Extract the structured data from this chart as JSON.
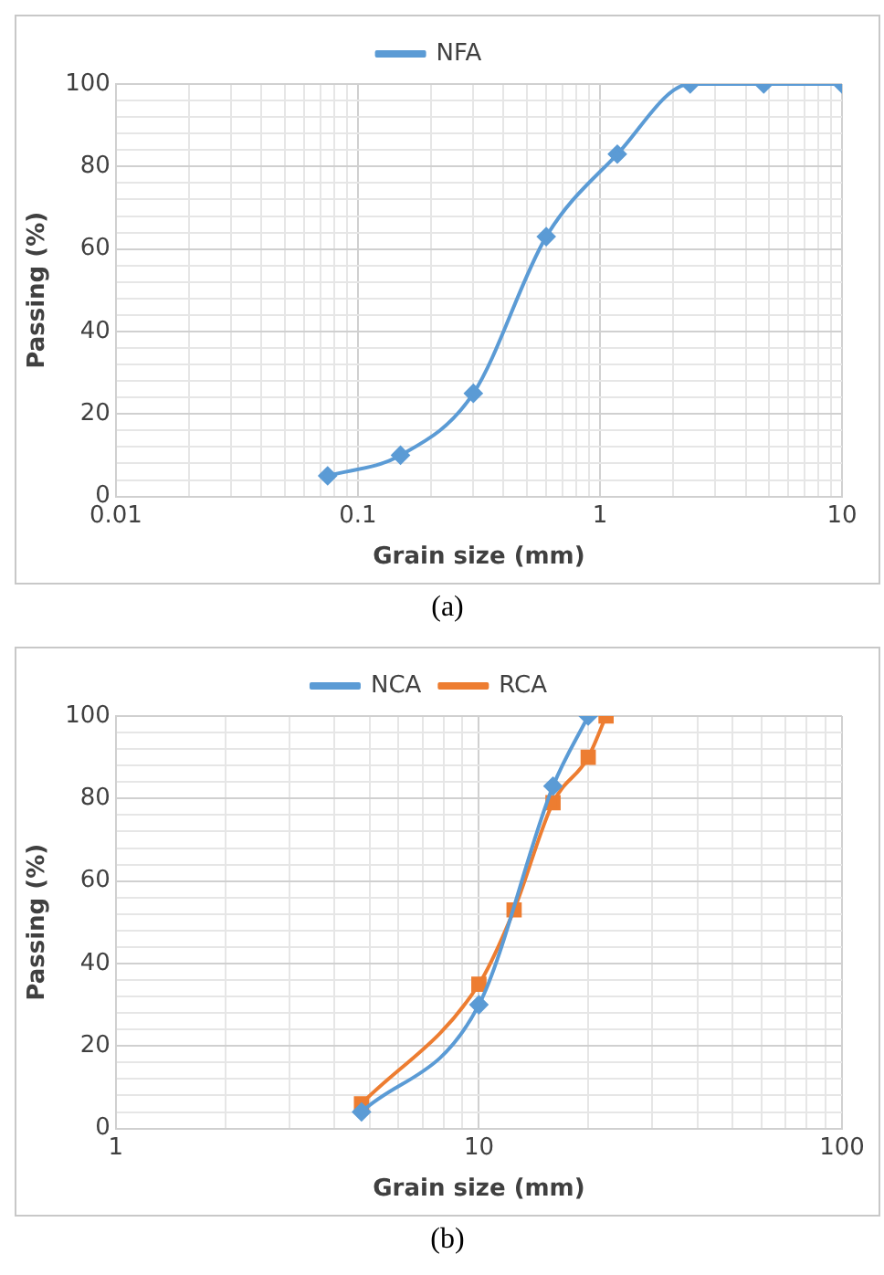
{
  "chart_data": [
    {
      "type": "line",
      "xlabel": "Grain size (mm)",
      "ylabel": "Passing (%)",
      "annotations": [
        "(a)"
      ],
      "log": "x",
      "grid": true,
      "legend": "top",
      "xlim": [
        0.01,
        10
      ],
      "ylim": [
        0,
        100
      ],
      "xticks": [
        0.01,
        {
          "value": 0.02,
          "label": null
        },
        {
          "value": 0.03,
          "label": null
        },
        {
          "value": 0.04,
          "label": null
        },
        {
          "value": 0.05,
          "label": null
        },
        {
          "value": 0.06,
          "label": null
        },
        {
          "value": 0.07,
          "label": null
        },
        {
          "value": 0.08,
          "label": null
        },
        {
          "value": 0.09,
          "label": null
        },
        0.1,
        {
          "value": 0.2,
          "label": null
        },
        {
          "value": 0.3,
          "label": null
        },
        {
          "value": 0.4,
          "label": null
        },
        {
          "value": 0.5,
          "label": null
        },
        {
          "value": 0.6,
          "label": null
        },
        {
          "value": 0.7,
          "label": null
        },
        {
          "value": 0.8,
          "label": null
        },
        {
          "value": 0.9,
          "label": null
        },
        1,
        {
          "value": 2,
          "label": null
        },
        {
          "value": 3,
          "label": null
        },
        {
          "value": 4,
          "label": null
        },
        {
          "value": 5,
          "label": null
        },
        {
          "value": 6,
          "label": null
        },
        {
          "value": 7,
          "label": null
        },
        {
          "value": 8,
          "label": null
        },
        {
          "value": 9,
          "label": null
        },
        10
      ],
      "yticks": [
        0,
        {
          "value": 4,
          "label": null
        },
        {
          "value": 8,
          "label": null
        },
        {
          "value": 12,
          "label": null
        },
        {
          "value": 16,
          "label": null
        },
        20,
        {
          "value": 24,
          "label": null
        },
        {
          "value": 28,
          "label": null
        },
        {
          "value": 32,
          "label": null
        },
        {
          "value": 36,
          "label": null
        },
        40,
        {
          "value": 44,
          "label": null
        },
        {
          "value": 48,
          "label": null
        },
        {
          "value": 52,
          "label": null
        },
        {
          "value": 56,
          "label": null
        },
        60,
        {
          "value": 64,
          "label": null
        },
        {
          "value": 68,
          "label": null
        },
        {
          "value": 72,
          "label": null
        },
        {
          "value": 76,
          "label": null
        },
        80,
        {
          "value": 84,
          "label": null
        },
        {
          "value": 88,
          "label": null
        },
        {
          "value": 92,
          "label": null
        },
        {
          "value": 96,
          "label": null
        },
        100
      ],
      "series": [
        {
          "name": "NFA",
          "color": "#5b9bd5",
          "marker": "diamond",
          "x": [
            0.075,
            0.15,
            0.3,
            0.6,
            1.18,
            2.36,
            4.75,
            10
          ],
          "values": [
            5,
            10,
            25,
            63,
            83,
            100,
            100,
            100
          ]
        }
      ]
    },
    {
      "type": "line",
      "xlabel": "Grain size (mm)",
      "ylabel": "Passing (%)",
      "annotations": [
        "(b)"
      ],
      "log": "x",
      "grid": true,
      "legend": "top",
      "xlim": [
        1,
        100
      ],
      "ylim": [
        0,
        100
      ],
      "xticks": [
        1,
        {
          "value": 2,
          "label": null
        },
        {
          "value": 3,
          "label": null
        },
        {
          "value": 4,
          "label": null
        },
        {
          "value": 5,
          "label": null
        },
        {
          "value": 6,
          "label": null
        },
        {
          "value": 7,
          "label": null
        },
        {
          "value": 8,
          "label": null
        },
        {
          "value": 9,
          "label": null
        },
        10,
        {
          "value": 20,
          "label": null
        },
        {
          "value": 30,
          "label": null
        },
        {
          "value": 40,
          "label": null
        },
        {
          "value": 50,
          "label": null
        },
        {
          "value": 60,
          "label": null
        },
        {
          "value": 70,
          "label": null
        },
        {
          "value": 80,
          "label": null
        },
        {
          "value": 90,
          "label": null
        },
        100
      ],
      "yticks": [
        0,
        {
          "value": 4,
          "label": null
        },
        {
          "value": 8,
          "label": null
        },
        {
          "value": 12,
          "label": null
        },
        {
          "value": 16,
          "label": null
        },
        20,
        {
          "value": 24,
          "label": null
        },
        {
          "value": 28,
          "label": null
        },
        {
          "value": 32,
          "label": null
        },
        {
          "value": 36,
          "label": null
        },
        40,
        {
          "value": 44,
          "label": null
        },
        {
          "value": 48,
          "label": null
        },
        {
          "value": 52,
          "label": null
        },
        {
          "value": 56,
          "label": null
        },
        60,
        {
          "value": 64,
          "label": null
        },
        {
          "value": 68,
          "label": null
        },
        {
          "value": 72,
          "label": null
        },
        {
          "value": 76,
          "label": null
        },
        80,
        {
          "value": 84,
          "label": null
        },
        {
          "value": 88,
          "label": null
        },
        {
          "value": 92,
          "label": null
        },
        {
          "value": 96,
          "label": null
        },
        100
      ],
      "series": [
        {
          "name": "NCA",
          "color": "#5b9bd5",
          "marker": "diamond",
          "x": [
            4.75,
            10,
            16,
            20
          ],
          "values": [
            4,
            30,
            83,
            100
          ]
        },
        {
          "name": "RCA",
          "color": "#ed7d31",
          "marker": "square",
          "x": [
            4.75,
            10,
            12.5,
            16,
            20,
            22.4
          ],
          "values": [
            6,
            35,
            53,
            79,
            90,
            100
          ]
        }
      ]
    }
  ]
}
